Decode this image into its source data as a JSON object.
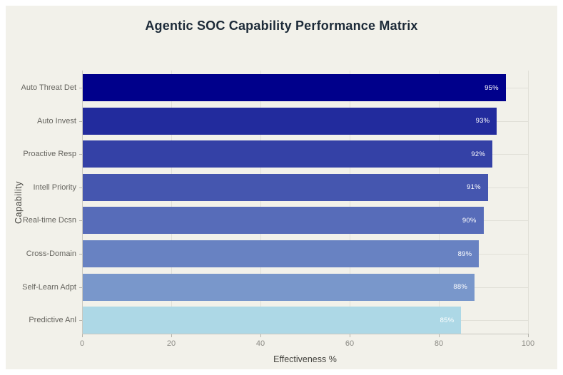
{
  "page": {
    "background": "#FFFFFF",
    "canvas_background": "#F2F1EA"
  },
  "chart_data": {
    "type": "bar",
    "orientation": "horizontal",
    "title": "Agentic SOC Capability Performance Matrix",
    "xlabel": "Effectiveness %",
    "ylabel": "Capability",
    "categories": [
      "Auto Threat Det",
      "Auto Invest",
      "Proactive Resp",
      "Intell Priority",
      "Real-time Dcsn",
      "Cross-Domain",
      "Self-Learn Adpt",
      "Predictive Anl"
    ],
    "values": [
      95,
      93,
      92,
      91,
      90,
      89,
      88,
      85
    ],
    "bar_labels": [
      "95%",
      "93%",
      "92%",
      "91%",
      "90%",
      "89%",
      "88%",
      "85%"
    ],
    "bar_colors": [
      "#00008B",
      "#222B9D",
      "#3441A6",
      "#4556AF",
      "#576CB9",
      "#6882C2",
      "#7997CB",
      "#ADD8E6"
    ],
    "x_tick_labels": [
      "0",
      "20",
      "40",
      "60",
      "80",
      "100"
    ],
    "x_tick_values": [
      0,
      20,
      40,
      60,
      80,
      100
    ],
    "xlim": [
      0,
      100
    ],
    "grid": true,
    "legend_position": "none",
    "colors": {
      "title": "#1C2A38",
      "axis_title": "#44433E",
      "tick_label": "#8C8B85",
      "category_label": "#66655F",
      "axis_line": "#C9C8C0",
      "grid_line": "#E0DFD7",
      "bar_value_label": "#FFFFFF"
    }
  }
}
